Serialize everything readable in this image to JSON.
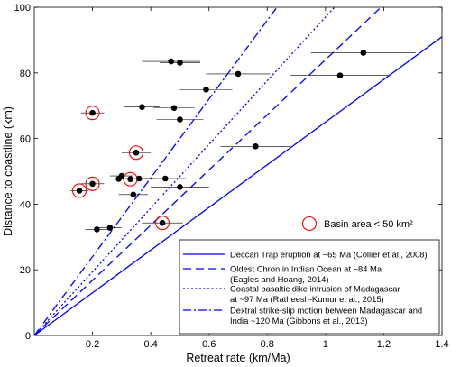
{
  "chart_data": {
    "type": "scatter",
    "title": "",
    "xlabel": "Retreat rate (km/Ma)",
    "ylabel": "Distance to coastline (km)",
    "xlim": [
      0,
      1.4
    ],
    "ylim": [
      0,
      100
    ],
    "xticks": [
      0.2,
      0.4,
      0.6,
      0.8,
      1,
      1.2,
      1.4
    ],
    "xtick_labels": [
      "0.2",
      "0.4",
      "0.6",
      "0.8",
      "1",
      "1.2",
      "1.4"
    ],
    "yticks": [
      0,
      20,
      40,
      60,
      80,
      100
    ],
    "ytick_labels": [
      "0",
      "20",
      "40",
      "60",
      "80",
      "100"
    ],
    "grid": false,
    "points": [
      {
        "x": 0.47,
        "y": 83.5,
        "xerr": 0.1,
        "basin_small": false
      },
      {
        "x": 0.5,
        "y": 83.1,
        "xerr": 0.07,
        "basin_small": false
      },
      {
        "x": 1.13,
        "y": 86.1,
        "xerr": 0.18,
        "basin_small": false
      },
      {
        "x": 0.7,
        "y": 79.7,
        "xerr": 0.11,
        "basin_small": false
      },
      {
        "x": 1.05,
        "y": 79.2,
        "xerr": 0.17,
        "basin_small": false
      },
      {
        "x": 0.59,
        "y": 74.9,
        "xerr": 0.09,
        "basin_small": false
      },
      {
        "x": 0.37,
        "y": 69.6,
        "xerr": 0.06,
        "basin_small": false
      },
      {
        "x": 0.48,
        "y": 69.3,
        "xerr": 0.07,
        "basin_small": false
      },
      {
        "x": 0.5,
        "y": 65.8,
        "xerr": 0.08,
        "basin_small": false
      },
      {
        "x": 0.2,
        "y": 67.8,
        "xerr": 0.04,
        "basin_small": true
      },
      {
        "x": 0.35,
        "y": 55.7,
        "xerr": 0.05,
        "basin_small": true
      },
      {
        "x": 0.76,
        "y": 57.6,
        "xerr": 0.12,
        "basin_small": false
      },
      {
        "x": 0.3,
        "y": 48.6,
        "xerr": 0.04,
        "basin_small": false
      },
      {
        "x": 0.29,
        "y": 47.7,
        "xerr": 0.04,
        "basin_small": false
      },
      {
        "x": 0.33,
        "y": 47.6,
        "xerr": 0.05,
        "basin_small": true
      },
      {
        "x": 0.36,
        "y": 47.8,
        "xerr": 0.06,
        "basin_small": false
      },
      {
        "x": 0.45,
        "y": 47.8,
        "xerr": 0.07,
        "basin_small": false
      },
      {
        "x": 0.2,
        "y": 46.2,
        "xerr": 0.04,
        "basin_small": true
      },
      {
        "x": 0.155,
        "y": 44.1,
        "xerr": 0.03,
        "basin_small": true
      },
      {
        "x": 0.34,
        "y": 42.9,
        "xerr": 0.05,
        "basin_small": false
      },
      {
        "x": 0.5,
        "y": 45.2,
        "xerr": 0.1,
        "basin_small": false
      },
      {
        "x": 0.44,
        "y": 34.3,
        "xerr": 0.07,
        "basin_small": true
      },
      {
        "x": 0.26,
        "y": 32.8,
        "xerr": 0.04,
        "basin_small": false
      },
      {
        "x": 0.215,
        "y": 32.3,
        "xerr": 0.04,
        "basin_small": false
      }
    ],
    "lines": [
      {
        "label_lines": [
          "Deccan Trap eruption at ~65 Ma (Collier et al., 2008)"
        ],
        "slope": 65,
        "style": "solid",
        "color": "#0000ff"
      },
      {
        "label_lines": [
          "Oldest Chron in Indian Ocean at ~84 Ma",
          "(Eagles and Hoang, 2014)"
        ],
        "slope": 84,
        "style": "dashed",
        "color": "#0000ff"
      },
      {
        "label_lines": [
          "Coastal basaltic dike intrusion of Madagascar",
          "at ~97 Ma (Ratheesh-Kumur et al., 2015)"
        ],
        "slope": 97,
        "style": "dotted",
        "color": "#0000ff"
      },
      {
        "label_lines": [
          "Dextral strike-slip motion between  Madagascar and",
          "India ~120 Ma (Gibbons et al., 2013)"
        ],
        "slope": 120,
        "style": "dashdot",
        "color": "#0000ff"
      }
    ],
    "marker_legend": "Basin area < 50 km²",
    "colors": {
      "points": "#000000",
      "errorbar": "#000000",
      "circle": "#ff0000",
      "lines": "#0000ff"
    }
  }
}
